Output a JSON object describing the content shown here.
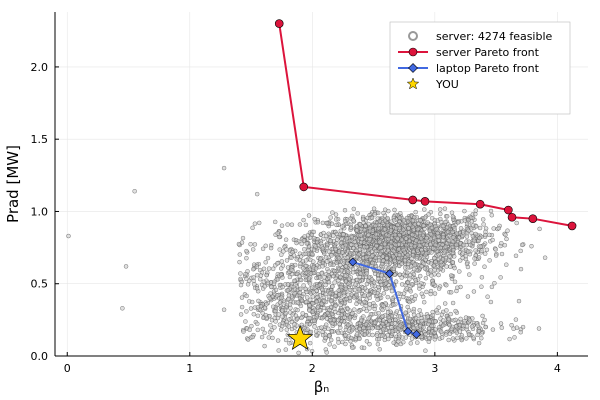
{
  "chart_data": {
    "type": "scatter",
    "title": "",
    "xlabel": "βₙ",
    "ylabel": "Prad [MW]",
    "xlim": [
      -0.1,
      4.25
    ],
    "ylim": [
      0,
      2.38
    ],
    "xticks": [
      0,
      1,
      2,
      3,
      4
    ],
    "yticks": [
      0.0,
      0.5,
      1.0,
      1.5,
      2.0
    ],
    "xtick_labels": [
      "0",
      "1",
      "2",
      "3",
      "4"
    ],
    "ytick_labels": [
      "0.0",
      "0.5",
      "1.0",
      "1.5",
      "2.0"
    ],
    "grid": true,
    "legend_position": "top-right",
    "legend": [
      {
        "label": "server: 4274 feasible",
        "marker": "open-circle",
        "color": "#999999"
      },
      {
        "label": "server Pareto front",
        "marker": "circle-line",
        "color": "#dc143c"
      },
      {
        "label": "laptop Pareto front",
        "marker": "diamond-line",
        "color": "#4169e1"
      },
      {
        "label": "YOU",
        "marker": "star",
        "color": "#ffd700"
      }
    ],
    "series": [
      {
        "name": "server: 4274 feasible",
        "kind": "scatter",
        "count": 4274,
        "clusters": [
          {
            "center": [
              2.75,
              0.8
            ],
            "spread": [
              0.35,
              0.1
            ],
            "weight": 0.45
          },
          {
            "center": [
              2.2,
              0.55
            ],
            "spread": [
              0.45,
              0.17
            ],
            "weight": 0.3
          },
          {
            "center": [
              2.8,
              0.2
            ],
            "spread": [
              0.35,
              0.06
            ],
            "weight": 0.15
          },
          {
            "center": [
              1.9,
              0.3
            ],
            "spread": [
              0.3,
              0.12
            ],
            "weight": 0.1
          }
        ],
        "outliers": [
          {
            "x": 0.01,
            "y": 0.83
          },
          {
            "x": 0.55,
            "y": 1.14
          },
          {
            "x": 1.28,
            "y": 1.3
          },
          {
            "x": 1.55,
            "y": 1.12
          },
          {
            "x": 0.48,
            "y": 0.62
          },
          {
            "x": 0.45,
            "y": 0.33
          },
          {
            "x": 1.28,
            "y": 0.32
          },
          {
            "x": 3.85,
            "y": 0.19
          },
          {
            "x": 3.72,
            "y": 0.2
          },
          {
            "x": 3.9,
            "y": 0.68
          }
        ]
      },
      {
        "name": "server Pareto front",
        "kind": "line",
        "points": [
          {
            "x": 1.73,
            "y": 2.3
          },
          {
            "x": 1.93,
            "y": 1.17
          },
          {
            "x": 2.82,
            "y": 1.08
          },
          {
            "x": 2.92,
            "y": 1.07
          },
          {
            "x": 3.37,
            "y": 1.05
          },
          {
            "x": 3.6,
            "y": 1.01
          },
          {
            "x": 3.63,
            "y": 0.96
          },
          {
            "x": 3.8,
            "y": 0.95
          },
          {
            "x": 4.12,
            "y": 0.9
          }
        ]
      },
      {
        "name": "laptop Pareto front",
        "kind": "line",
        "points": [
          {
            "x": 2.33,
            "y": 0.65
          },
          {
            "x": 2.63,
            "y": 0.57
          },
          {
            "x": 2.78,
            "y": 0.17
          },
          {
            "x": 2.85,
            "y": 0.15
          }
        ]
      },
      {
        "name": "YOU",
        "kind": "marker",
        "points": [
          {
            "x": 1.9,
            "y": 0.12
          }
        ]
      }
    ]
  }
}
